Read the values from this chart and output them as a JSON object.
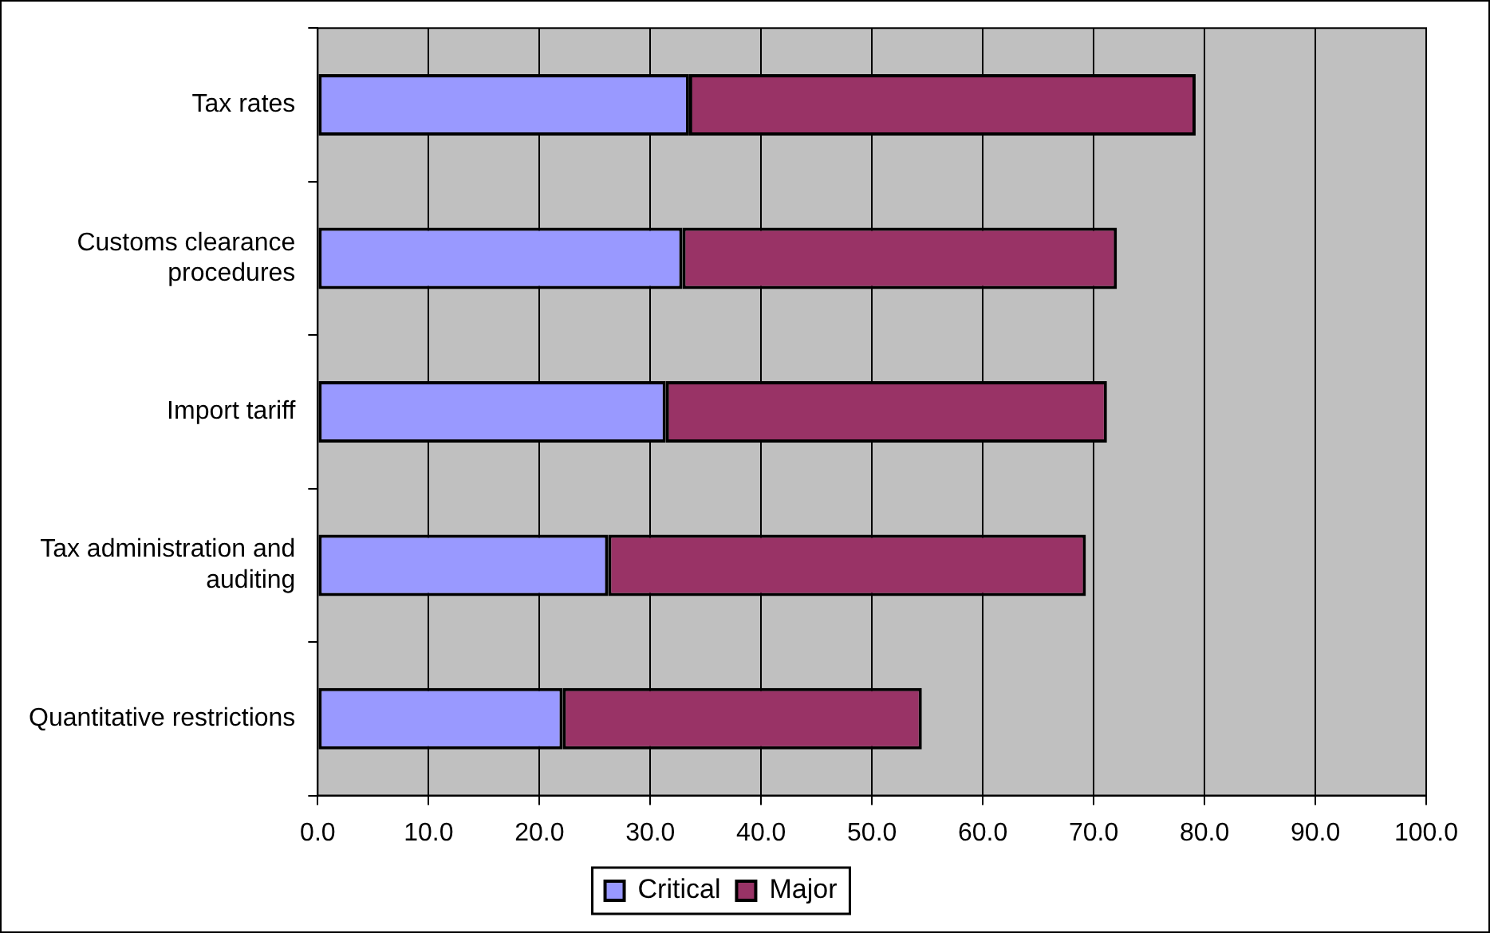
{
  "chart_data": {
    "type": "bar",
    "orientation": "horizontal",
    "stacked": true,
    "categories": [
      "Tax rates",
      "Customs clearance procedures",
      "Import tariff",
      "Tax administration and auditing",
      "Quantitative restrictions"
    ],
    "series": [
      {
        "name": "Critical",
        "color": "#9999ff",
        "values": [
          33.5,
          32.9,
          31.4,
          26.2,
          22.1
        ]
      },
      {
        "name": "Major",
        "color": "#993366",
        "values": [
          45.7,
          39.2,
          39.8,
          43.1,
          32.4
        ]
      }
    ],
    "xlim": [
      0,
      100
    ],
    "xticks": [
      {
        "value": 0,
        "label": "0.0"
      },
      {
        "value": 10,
        "label": "10.0"
      },
      {
        "value": 20,
        "label": "20.0"
      },
      {
        "value": 30,
        "label": "30.0"
      },
      {
        "value": 40,
        "label": "40.0"
      },
      {
        "value": 50,
        "label": "50.0"
      },
      {
        "value": 60,
        "label": "60.0"
      },
      {
        "value": 70,
        "label": "70.0"
      },
      {
        "value": 80,
        "label": "80.0"
      },
      {
        "value": 90,
        "label": "90.0"
      },
      {
        "value": 100,
        "label": "100.0"
      }
    ],
    "grid": "x",
    "legend": "bottom"
  }
}
